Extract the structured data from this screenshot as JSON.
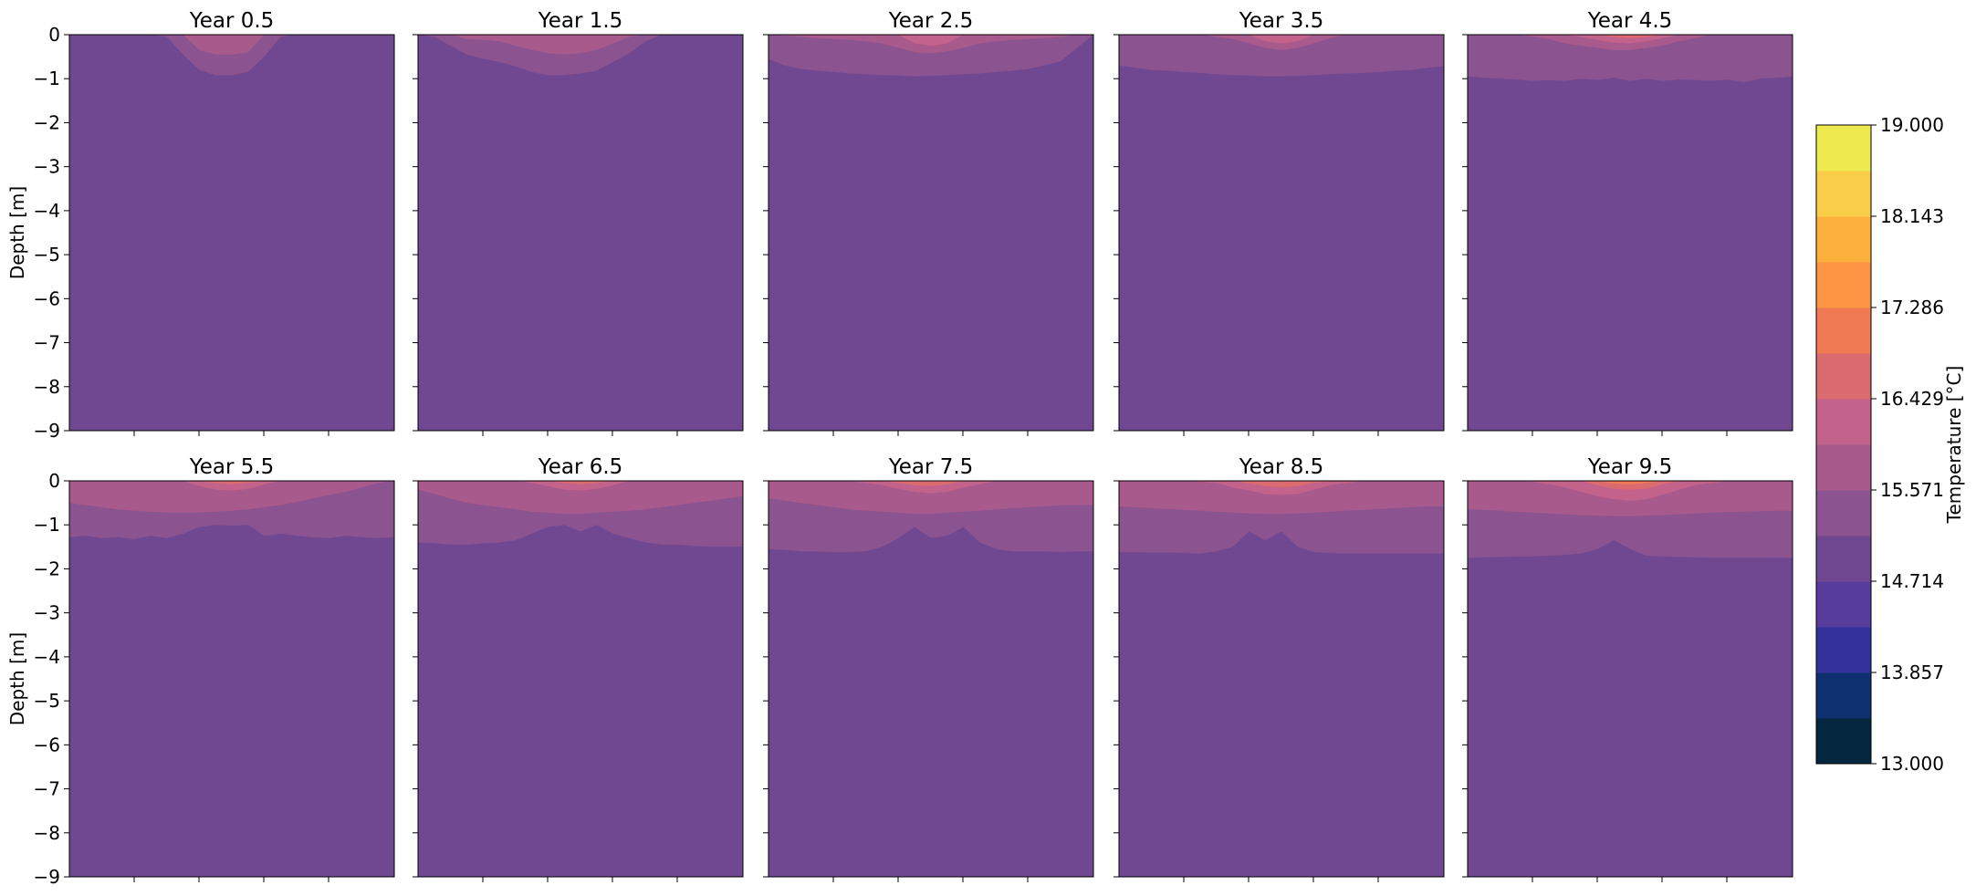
{
  "chart_data": {
    "type": "heatmap",
    "layout": {
      "rows": 2,
      "cols": 5,
      "shared_colorbar": true
    },
    "ylabel": "Depth [m]",
    "ylim": [
      -9,
      0
    ],
    "y_ticks": [
      "0",
      "−1",
      "−2",
      "−3",
      "−4",
      "−5",
      "−6",
      "−7",
      "−8",
      "−9"
    ],
    "x_ticklabels_visible": false,
    "colorbar": {
      "label": "Temperature [°C]",
      "min": 13.0,
      "max": 19.0,
      "tick_labels": [
        "13.000",
        "13.857",
        "14.714",
        "15.571",
        "16.429",
        "17.286",
        "18.143",
        "19.000"
      ],
      "level_colors": [
        "#04263f",
        "#0f306f",
        "#33329a",
        "#573c9c",
        "#704892",
        "#8b5390",
        "#a85a8d",
        "#c3628b",
        "#dc6b70",
        "#f07a54",
        "#fb9543",
        "#fdb13c",
        "#f9cd48",
        "#eeea50"
      ]
    },
    "panels": [
      {
        "title": "Year 0.5",
        "base_level": 4,
        "layers": [
          {
            "level": 5,
            "depth": [
              -0.0,
              -0.0,
              -0.0,
              -0.0,
              -0.0,
              -0.0,
              -0.05,
              -0.45,
              -0.8,
              -0.92,
              -0.92,
              -0.85,
              -0.5,
              -0.05,
              -0.0,
              -0.0,
              -0.0,
              -0.0,
              -0.0,
              -0.0,
              -0.0
            ]
          },
          {
            "level": 6,
            "depth": [
              -0.0,
              -0.0,
              -0.0,
              -0.0,
              -0.0,
              -0.0,
              -0.0,
              -0.0,
              -0.35,
              -0.45,
              -0.45,
              -0.4,
              -0.0,
              -0.0,
              -0.0,
              -0.0,
              -0.0,
              -0.0,
              -0.0,
              -0.0,
              -0.0
            ]
          }
        ]
      },
      {
        "title": "Year 1.5",
        "base_level": 4,
        "layers": [
          {
            "level": 5,
            "depth": [
              -0.0,
              -0.05,
              -0.25,
              -0.45,
              -0.55,
              -0.62,
              -0.72,
              -0.85,
              -0.92,
              -0.92,
              -0.88,
              -0.82,
              -0.62,
              -0.42,
              -0.15,
              -0.0,
              -0.0,
              -0.0,
              -0.0,
              -0.0,
              -0.0
            ]
          },
          {
            "level": 6,
            "depth": [
              -0.0,
              -0.0,
              -0.0,
              -0.1,
              -0.12,
              -0.15,
              -0.25,
              -0.35,
              -0.42,
              -0.45,
              -0.42,
              -0.35,
              -0.2,
              -0.05,
              -0.0,
              -0.0,
              -0.0,
              -0.0,
              -0.0,
              -0.0,
              -0.0
            ]
          }
        ]
      },
      {
        "title": "Year 2.5",
        "base_level": 4,
        "layers": [
          {
            "level": 5,
            "depth": [
              -0.55,
              -0.7,
              -0.78,
              -0.82,
              -0.85,
              -0.88,
              -0.9,
              -0.92,
              -0.93,
              -0.95,
              -0.94,
              -0.92,
              -0.9,
              -0.88,
              -0.85,
              -0.82,
              -0.78,
              -0.7,
              -0.6,
              -0.3,
              -0.0
            ]
          },
          {
            "level": 6,
            "depth": [
              -0.0,
              -0.02,
              -0.05,
              -0.08,
              -0.1,
              -0.12,
              -0.15,
              -0.2,
              -0.3,
              -0.4,
              -0.42,
              -0.38,
              -0.3,
              -0.2,
              -0.15,
              -0.12,
              -0.1,
              -0.08,
              -0.05,
              -0.0,
              -0.0
            ]
          },
          {
            "level": 7,
            "depth": [
              -0.0,
              -0.0,
              -0.0,
              -0.0,
              -0.0,
              -0.0,
              -0.0,
              -0.0,
              -0.0,
              -0.2,
              -0.25,
              -0.2,
              -0.0,
              -0.0,
              -0.0,
              -0.0,
              -0.0,
              -0.0,
              -0.0,
              -0.0,
              -0.0
            ]
          }
        ]
      },
      {
        "title": "Year 3.5",
        "base_level": 4,
        "layers": [
          {
            "level": 5,
            "depth": [
              -0.7,
              -0.75,
              -0.8,
              -0.82,
              -0.85,
              -0.87,
              -0.9,
              -0.92,
              -0.93,
              -0.95,
              -0.95,
              -0.94,
              -0.92,
              -0.9,
              -0.88,
              -0.87,
              -0.85,
              -0.82,
              -0.8,
              -0.75,
              -0.72
            ]
          },
          {
            "level": 6,
            "depth": [
              -0.0,
              -0.0,
              -0.0,
              -0.0,
              -0.0,
              -0.0,
              -0.05,
              -0.1,
              -0.2,
              -0.3,
              -0.35,
              -0.3,
              -0.2,
              -0.08,
              -0.0,
              -0.0,
              -0.0,
              -0.0,
              -0.0,
              -0.0,
              -0.0
            ]
          },
          {
            "level": 7,
            "depth": [
              -0.0,
              -0.0,
              -0.0,
              -0.0,
              -0.0,
              -0.0,
              -0.0,
              -0.0,
              -0.0,
              -0.15,
              -0.2,
              -0.15,
              -0.0,
              -0.0,
              -0.0,
              -0.0,
              -0.0,
              -0.0,
              -0.0,
              -0.0,
              -0.0
            ]
          }
        ]
      },
      {
        "title": "Year 4.5",
        "base_level": 4,
        "layers": [
          {
            "level": 5,
            "depth": [
              -0.95,
              -0.98,
              -1.0,
              -1.02,
              -1.05,
              -1.03,
              -1.05,
              -1.0,
              -1.03,
              -0.98,
              -1.05,
              -1.0,
              -1.05,
              -1.02,
              -1.03,
              -1.05,
              -1.02,
              -1.08,
              -1.0,
              -0.98,
              -0.95
            ]
          },
          {
            "level": 6,
            "depth": [
              -0.0,
              -0.0,
              -0.0,
              -0.0,
              -0.05,
              -0.1,
              -0.2,
              -0.25,
              -0.3,
              -0.35,
              -0.35,
              -0.3,
              -0.25,
              -0.15,
              -0.08,
              -0.0,
              -0.0,
              -0.0,
              -0.0,
              -0.0,
              -0.0
            ]
          },
          {
            "level": 7,
            "depth": [
              -0.0,
              -0.0,
              -0.0,
              -0.0,
              -0.0,
              -0.0,
              -0.0,
              -0.05,
              -0.12,
              -0.18,
              -0.2,
              -0.15,
              -0.08,
              -0.0,
              -0.0,
              -0.0,
              -0.0,
              -0.0,
              -0.0,
              -0.0,
              -0.0
            ]
          },
          {
            "level": 8,
            "depth": [
              -0.0,
              -0.0,
              -0.0,
              -0.0,
              -0.0,
              -0.0,
              -0.0,
              -0.0,
              -0.0,
              -0.05,
              -0.08,
              -0.05,
              -0.0,
              -0.0,
              -0.0,
              -0.0,
              -0.0,
              -0.0,
              -0.0,
              -0.0,
              -0.0
            ]
          }
        ]
      },
      {
        "title": "Year 5.5",
        "base_level": 4,
        "layers": [
          {
            "level": 5,
            "depth": [
              -1.28,
              -1.25,
              -1.3,
              -1.28,
              -1.32,
              -1.25,
              -1.3,
              -1.2,
              -1.05,
              -1.0,
              -1.02,
              -1.0,
              -1.25,
              -1.2,
              -1.25,
              -1.28,
              -1.3,
              -1.25,
              -1.28,
              -1.3,
              -1.28
            ]
          },
          {
            "level": 6,
            "depth": [
              -0.5,
              -0.55,
              -0.6,
              -0.65,
              -0.68,
              -0.7,
              -0.72,
              -0.72,
              -0.72,
              -0.7,
              -0.68,
              -0.65,
              -0.6,
              -0.55,
              -0.48,
              -0.4,
              -0.32,
              -0.25,
              -0.15,
              -0.05,
              -0.0
            ]
          },
          {
            "level": 7,
            "depth": [
              -0.0,
              -0.0,
              -0.0,
              -0.0,
              -0.0,
              -0.0,
              -0.0,
              -0.0,
              -0.12,
              -0.2,
              -0.22,
              -0.18,
              -0.08,
              -0.0,
              -0.0,
              -0.0,
              -0.0,
              -0.0,
              -0.0,
              -0.0,
              -0.0
            ]
          },
          {
            "level": 8,
            "depth": [
              -0.0,
              -0.0,
              -0.0,
              -0.0,
              -0.0,
              -0.0,
              -0.0,
              -0.0,
              -0.0,
              -0.05,
              -0.08,
              -0.05,
              -0.0,
              -0.0,
              -0.0,
              -0.0,
              -0.0,
              -0.0,
              -0.0,
              -0.0,
              -0.0
            ]
          }
        ]
      },
      {
        "title": "Year 6.5",
        "base_level": 4,
        "layers": [
          {
            "level": 5,
            "depth": [
              -1.4,
              -1.42,
              -1.45,
              -1.45,
              -1.42,
              -1.4,
              -1.35,
              -1.2,
              -1.05,
              -1.0,
              -1.15,
              -1.0,
              -1.2,
              -1.3,
              -1.4,
              -1.45,
              -1.45,
              -1.48,
              -1.5,
              -1.5,
              -1.5
            ]
          },
          {
            "level": 6,
            "depth": [
              -0.2,
              -0.3,
              -0.4,
              -0.5,
              -0.55,
              -0.6,
              -0.65,
              -0.7,
              -0.72,
              -0.75,
              -0.75,
              -0.72,
              -0.7,
              -0.68,
              -0.65,
              -0.6,
              -0.55,
              -0.5,
              -0.45,
              -0.4,
              -0.35
            ]
          },
          {
            "level": 7,
            "depth": [
              -0.0,
              -0.0,
              -0.0,
              -0.0,
              -0.0,
              -0.0,
              -0.0,
              -0.05,
              -0.12,
              -0.2,
              -0.22,
              -0.18,
              -0.1,
              -0.0,
              -0.0,
              -0.0,
              -0.0,
              -0.0,
              -0.0,
              -0.0,
              -0.0
            ]
          },
          {
            "level": 8,
            "depth": [
              -0.0,
              -0.0,
              -0.0,
              -0.0,
              -0.0,
              -0.0,
              -0.0,
              -0.0,
              -0.0,
              -0.05,
              -0.08,
              -0.05,
              -0.0,
              -0.0,
              -0.0,
              -0.0,
              -0.0,
              -0.0,
              -0.0,
              -0.0,
              -0.0
            ]
          }
        ]
      },
      {
        "title": "Year 7.5",
        "base_level": 4,
        "layers": [
          {
            "level": 5,
            "depth": [
              -1.55,
              -1.57,
              -1.6,
              -1.6,
              -1.62,
              -1.62,
              -1.6,
              -1.5,
              -1.3,
              -1.05,
              -1.3,
              -1.25,
              -1.05,
              -1.4,
              -1.55,
              -1.6,
              -1.6,
              -1.6,
              -1.62,
              -1.6,
              -1.6
            ]
          },
          {
            "level": 6,
            "depth": [
              -0.4,
              -0.45,
              -0.5,
              -0.55,
              -0.6,
              -0.65,
              -0.68,
              -0.7,
              -0.72,
              -0.75,
              -0.75,
              -0.72,
              -0.7,
              -0.68,
              -0.65,
              -0.62,
              -0.6,
              -0.58,
              -0.55,
              -0.55,
              -0.55
            ]
          },
          {
            "level": 7,
            "depth": [
              -0.0,
              -0.0,
              -0.0,
              -0.0,
              -0.0,
              -0.0,
              -0.05,
              -0.1,
              -0.18,
              -0.25,
              -0.28,
              -0.25,
              -0.15,
              -0.08,
              -0.0,
              -0.0,
              -0.0,
              -0.0,
              -0.0,
              -0.0,
              -0.0
            ]
          },
          {
            "level": 8,
            "depth": [
              -0.0,
              -0.0,
              -0.0,
              -0.0,
              -0.0,
              -0.0,
              -0.0,
              -0.0,
              -0.05,
              -0.1,
              -0.12,
              -0.08,
              -0.0,
              -0.0,
              -0.0,
              -0.0,
              -0.0,
              -0.0,
              -0.0,
              -0.0,
              -0.0
            ]
          }
        ]
      },
      {
        "title": "Year 8.5",
        "base_level": 4,
        "layers": [
          {
            "level": 5,
            "depth": [
              -1.62,
              -1.62,
              -1.63,
              -1.63,
              -1.64,
              -1.65,
              -1.6,
              -1.5,
              -1.15,
              -1.35,
              -1.15,
              -1.5,
              -1.62,
              -1.64,
              -1.65,
              -1.65,
              -1.65,
              -1.65,
              -1.65,
              -1.65,
              -1.65
            ]
          },
          {
            "level": 6,
            "depth": [
              -0.58,
              -0.6,
              -0.62,
              -0.64,
              -0.66,
              -0.68,
              -0.7,
              -0.72,
              -0.74,
              -0.75,
              -0.75,
              -0.74,
              -0.72,
              -0.7,
              -0.68,
              -0.66,
              -0.64,
              -0.62,
              -0.6,
              -0.58,
              -0.58
            ]
          },
          {
            "level": 7,
            "depth": [
              -0.0,
              -0.0,
              -0.0,
              -0.0,
              -0.0,
              -0.02,
              -0.05,
              -0.15,
              -0.22,
              -0.3,
              -0.32,
              -0.3,
              -0.2,
              -0.1,
              -0.05,
              -0.0,
              -0.0,
              -0.0,
              -0.0,
              -0.0,
              -0.0
            ]
          },
          {
            "level": 8,
            "depth": [
              -0.0,
              -0.0,
              -0.0,
              -0.0,
              -0.0,
              -0.0,
              -0.0,
              -0.0,
              -0.06,
              -0.12,
              -0.15,
              -0.12,
              -0.05,
              -0.0,
              -0.0,
              -0.0,
              -0.0,
              -0.0,
              -0.0,
              -0.0,
              -0.0
            ]
          }
        ]
      },
      {
        "title": "Year 9.5",
        "base_level": 4,
        "layers": [
          {
            "level": 5,
            "depth": [
              -1.75,
              -1.74,
              -1.73,
              -1.72,
              -1.72,
              -1.7,
              -1.68,
              -1.65,
              -1.55,
              -1.35,
              -1.55,
              -1.7,
              -1.72,
              -1.73,
              -1.74,
              -1.75,
              -1.75,
              -1.75,
              -1.75,
              -1.75,
              -1.75
            ]
          },
          {
            "level": 6,
            "depth": [
              -0.65,
              -0.66,
              -0.68,
              -0.7,
              -0.72,
              -0.74,
              -0.76,
              -0.78,
              -0.79,
              -0.8,
              -0.8,
              -0.79,
              -0.78,
              -0.76,
              -0.74,
              -0.72,
              -0.71,
              -0.7,
              -0.69,
              -0.68,
              -0.68
            ]
          },
          {
            "level": 7,
            "depth": [
              -0.0,
              -0.0,
              -0.0,
              -0.0,
              -0.02,
              -0.08,
              -0.15,
              -0.25,
              -0.35,
              -0.42,
              -0.45,
              -0.42,
              -0.32,
              -0.2,
              -0.1,
              -0.05,
              -0.0,
              -0.0,
              -0.0,
              -0.0,
              -0.0
            ]
          },
          {
            "level": 8,
            "depth": [
              -0.0,
              -0.0,
              -0.0,
              -0.0,
              -0.0,
              -0.0,
              -0.0,
              -0.0,
              -0.1,
              -0.18,
              -0.2,
              -0.18,
              -0.08,
              -0.0,
              -0.0,
              -0.0,
              -0.0,
              -0.0,
              -0.0,
              -0.0,
              -0.0
            ]
          },
          {
            "level": 9,
            "depth": [
              -0.0,
              -0.0,
              -0.0,
              -0.0,
              -0.0,
              -0.0,
              -0.0,
              -0.0,
              -0.0,
              -0.06,
              -0.08,
              -0.05,
              -0.0,
              -0.0,
              -0.0,
              -0.0,
              -0.0,
              -0.0,
              -0.0,
              -0.0,
              -0.0
            ]
          }
        ]
      }
    ]
  }
}
